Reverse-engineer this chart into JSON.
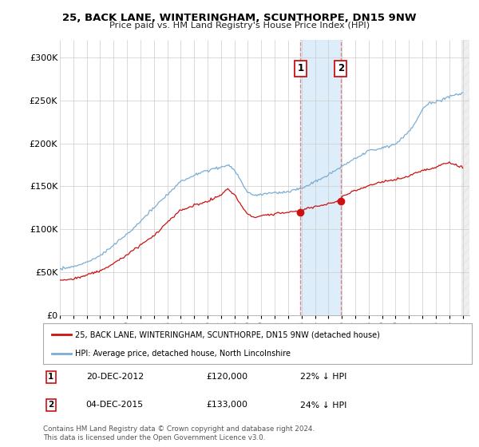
{
  "title": "25, BACK LANE, WINTERINGHAM, SCUNTHORPE, DN15 9NW",
  "subtitle": "Price paid vs. HM Land Registry's House Price Index (HPI)",
  "ylim": [
    0,
    320000
  ],
  "yticks": [
    0,
    50000,
    100000,
    150000,
    200000,
    250000,
    300000
  ],
  "ytick_labels": [
    "£0",
    "£50K",
    "£100K",
    "£150K",
    "£200K",
    "£250K",
    "£300K"
  ],
  "hpi_color": "#7aadd4",
  "price_color": "#cc1111",
  "shade_color": "#d8eaf8",
  "legend_line1": "25, BACK LANE, WINTERINGHAM, SCUNTHORPE, DN15 9NW (detached house)",
  "legend_line2": "HPI: Average price, detached house, North Lincolnshire",
  "footnote": "Contains HM Land Registry data © Crown copyright and database right 2024.\nThis data is licensed under the Open Government Licence v3.0.",
  "background_color": "#ffffff",
  "grid_color": "#cccccc",
  "sale1_year": 2012.917,
  "sale1_price": 120000,
  "sale2_year": 2015.917,
  "sale2_price": 133000,
  "hpi_waypoints_x": [
    1995,
    1996,
    1997,
    1998,
    1999,
    2000,
    2001,
    2002,
    2003,
    2004,
    2005,
    2006,
    2007,
    2007.5,
    2008,
    2008.5,
    2009,
    2009.5,
    2010,
    2011,
    2012,
    2012.5,
    2013,
    2013.5,
    2014,
    2015,
    2016,
    2017,
    2018,
    2019,
    2020,
    2021,
    2021.5,
    2022,
    2022.5,
    2023,
    2023.5,
    2024,
    2024.5,
    2025
  ],
  "hpi_waypoints_y": [
    55000,
    57000,
    62000,
    70000,
    82000,
    95000,
    110000,
    125000,
    140000,
    155000,
    162000,
    168000,
    172000,
    175000,
    168000,
    155000,
    142000,
    138000,
    140000,
    142000,
    143000,
    145000,
    147000,
    150000,
    155000,
    162000,
    172000,
    182000,
    190000,
    195000,
    200000,
    215000,
    225000,
    240000,
    248000,
    248000,
    252000,
    255000,
    258000,
    260000
  ],
  "price_waypoints_x": [
    1995,
    1996,
    1997,
    1998,
    1999,
    2000,
    2001,
    2002,
    2003,
    2004,
    2005,
    2006,
    2007,
    2007.5,
    2008,
    2008.5,
    2009,
    2009.5,
    2010,
    2011,
    2012,
    2012.917,
    2013,
    2014,
    2015,
    2015.917,
    2016,
    2017,
    2018,
    2019,
    2020,
    2021,
    2022,
    2023,
    2024,
    2024.5,
    2025
  ],
  "price_waypoints_y": [
    40000,
    42000,
    46000,
    52000,
    60000,
    70000,
    82000,
    93000,
    108000,
    122000,
    128000,
    132000,
    140000,
    147000,
    140000,
    128000,
    118000,
    114000,
    116000,
    118000,
    120000,
    120000,
    122000,
    126000,
    130000,
    133000,
    138000,
    145000,
    150000,
    155000,
    158000,
    162000,
    168000,
    172000,
    178000,
    175000,
    172000
  ]
}
